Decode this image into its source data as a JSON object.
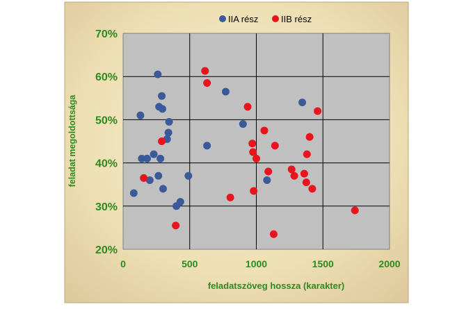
{
  "chart_data": {
    "type": "scatter",
    "xlabel": "feladatszöveg hossza (karakter)",
    "ylabel": "feladat megoldottsága",
    "xlim": [
      0,
      2000
    ],
    "ylim": [
      20,
      70
    ],
    "x_ticks": [
      "0",
      "500",
      "1000",
      "1500",
      "2000"
    ],
    "y_ticks": [
      "20%",
      "30%",
      "40%",
      "50%",
      "60%",
      "70%"
    ],
    "y_unit": "%",
    "grid": "vertical-and-horizontal",
    "legend_position": "top",
    "series": [
      {
        "name": "IIA rész",
        "color": "#3b5a9a",
        "points": [
          [
            80,
            33
          ],
          [
            130,
            51
          ],
          [
            140,
            41
          ],
          [
            180,
            41
          ],
          [
            200,
            36
          ],
          [
            230,
            42
          ],
          [
            260,
            60.5
          ],
          [
            265,
            37
          ],
          [
            270,
            53
          ],
          [
            280,
            41
          ],
          [
            290,
            55.5
          ],
          [
            295,
            52.5
          ],
          [
            300,
            34
          ],
          [
            330,
            45.5
          ],
          [
            340,
            47
          ],
          [
            345,
            49.5
          ],
          [
            400,
            30
          ],
          [
            430,
            31
          ],
          [
            490,
            37
          ],
          [
            630,
            44
          ],
          [
            770,
            56.5
          ],
          [
            900,
            49
          ],
          [
            1080,
            36
          ],
          [
            1345,
            54
          ]
        ]
      },
      {
        "name": "IIB rész",
        "color": "#e8141e",
        "points": [
          [
            155,
            36.5
          ],
          [
            290,
            45
          ],
          [
            395,
            25.5
          ],
          [
            615,
            61.3
          ],
          [
            630,
            58.5
          ],
          [
            805,
            32
          ],
          [
            935,
            53
          ],
          [
            970,
            44.5
          ],
          [
            975,
            42.5
          ],
          [
            980,
            33.5
          ],
          [
            1000,
            41
          ],
          [
            1060,
            47.5
          ],
          [
            1090,
            38
          ],
          [
            1130,
            23.5
          ],
          [
            1140,
            44
          ],
          [
            1265,
            38.5
          ],
          [
            1285,
            37
          ],
          [
            1360,
            37.5
          ],
          [
            1375,
            35.5
          ],
          [
            1380,
            42
          ],
          [
            1400,
            46
          ],
          [
            1420,
            34
          ],
          [
            1460,
            52
          ],
          [
            1740,
            29
          ]
        ]
      }
    ]
  }
}
